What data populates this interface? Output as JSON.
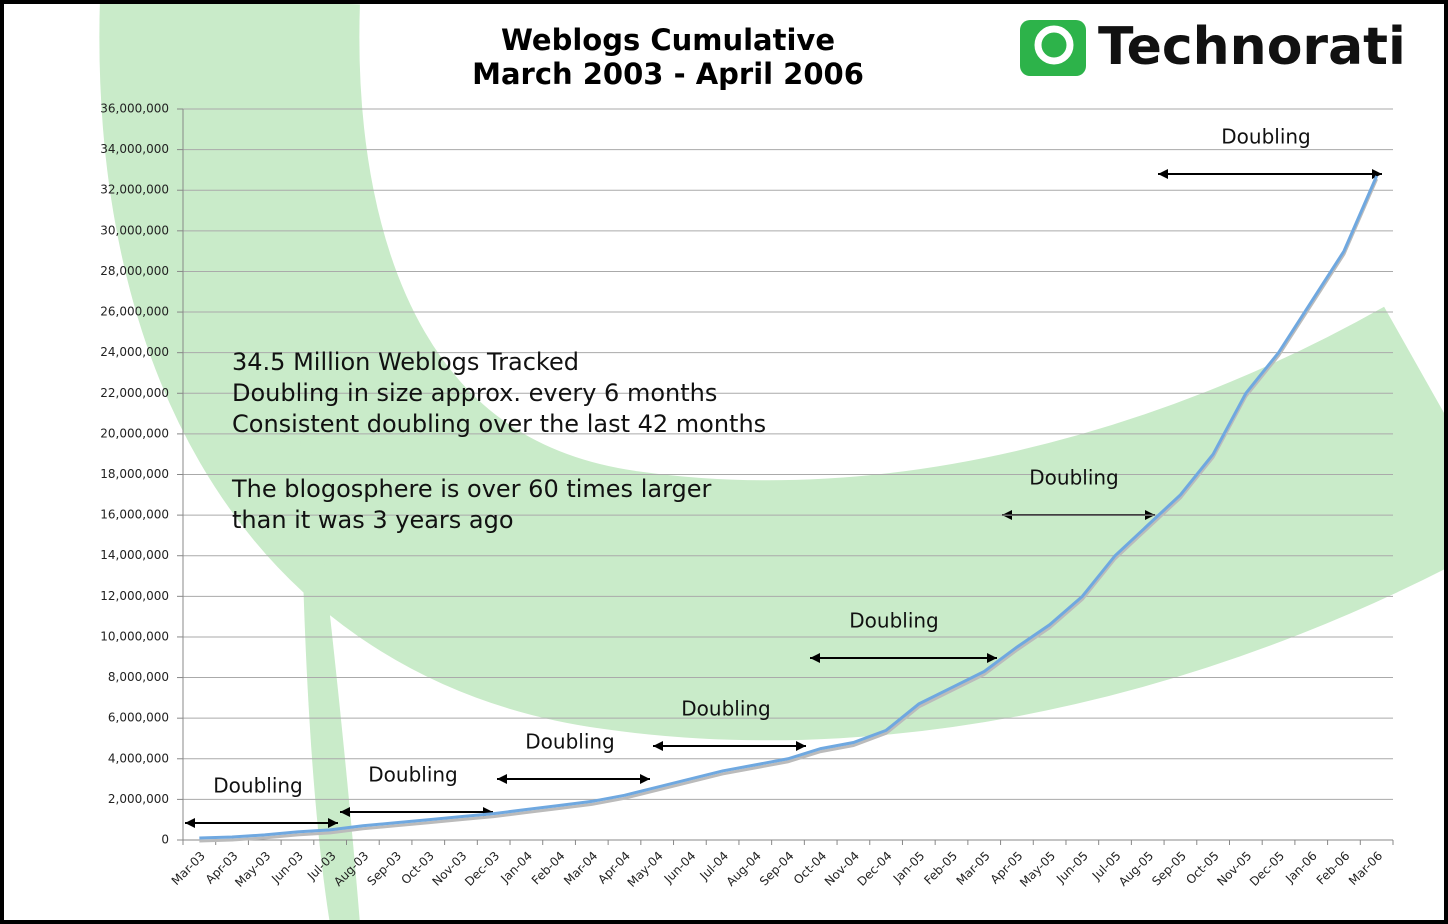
{
  "chart_data": {
    "type": "line",
    "title": "Weblogs Cumulative",
    "subtitle": "March 2003 - April 2006",
    "logo": "Technorati",
    "categories": [
      "Mar-03",
      "Apr-03",
      "May-03",
      "Jun-03",
      "Jul-03",
      "Aug-03",
      "Sep-03",
      "Oct-03",
      "Nov-03",
      "Dec-03",
      "Jan-04",
      "Feb-04",
      "Mar-04",
      "Apr-04",
      "May-04",
      "Jun-04",
      "Jul-04",
      "Aug-04",
      "Sep-04",
      "Oct-04",
      "Nov-04",
      "Dec-04",
      "Jan-05",
      "Feb-05",
      "Mar-05",
      "Apr-05",
      "May-05",
      "Jun-05",
      "Jul-05",
      "Aug-05",
      "Sep-05",
      "Oct-05",
      "Nov-05",
      "Dec-05",
      "Jan-06",
      "Feb-06",
      "Mar-06"
    ],
    "values": [
      100000,
      150000,
      250000,
      400000,
      500000,
      700000,
      850000,
      1000000,
      1150000,
      1300000,
      1500000,
      1700000,
      1900000,
      2200000,
      2600000,
      3000000,
      3400000,
      3700000,
      4000000,
      4500000,
      4800000,
      5400000,
      6700000,
      7500000,
      8300000,
      9500000,
      10600000,
      12000000,
      14000000,
      15500000,
      17000000,
      19000000,
      22000000,
      24000000,
      26500000,
      29000000,
      32700000
    ],
    "color": "#6fa8e0",
    "ylim": [
      0,
      36000000
    ],
    "yticks": [
      0,
      {
        "value": 2000000,
        "label": "2,000,000"
      },
      {
        "value": 4000000,
        "label": "4,000,000"
      },
      {
        "value": 6000000,
        "label": "6,000,000"
      },
      {
        "value": 8000000,
        "label": "8,000,000"
      },
      {
        "value": 10000000,
        "label": "10,000,000"
      },
      {
        "value": 12000000,
        "label": "12,000,000"
      },
      {
        "value": 14000000,
        "label": "14,000,000"
      },
      {
        "value": 16000000,
        "label": "16,000,000"
      },
      {
        "value": 18000000,
        "label": "18,000,000"
      },
      {
        "value": 20000000,
        "label": "20,000,000"
      },
      {
        "value": 22000000,
        "label": "22,000,000"
      },
      {
        "value": 24000000,
        "label": "24,000,000"
      },
      {
        "value": 26000000,
        "label": "26,000,000"
      },
      {
        "value": 28000000,
        "label": "28,000,000"
      },
      {
        "value": 30000000,
        "label": "30,000,000"
      },
      {
        "value": 32000000,
        "label": "32,000,000"
      },
      {
        "value": 34000000,
        "label": "34,000,000"
      },
      {
        "value": 36000000,
        "label": "36,000,000"
      }
    ],
    "grid": true,
    "annotations": [
      "34.5 Million Weblogs Tracked",
      "Doubling in size approx. every 6 months",
      "Consistent doubling over the last 42 months",
      "The blogosphere is over 60 times larger",
      "than it was 3 years ago",
      "Doubling",
      "Doubling",
      "Doubling",
      "Doubling",
      "Doubling",
      "Doubling",
      "Doubling"
    ]
  }
}
